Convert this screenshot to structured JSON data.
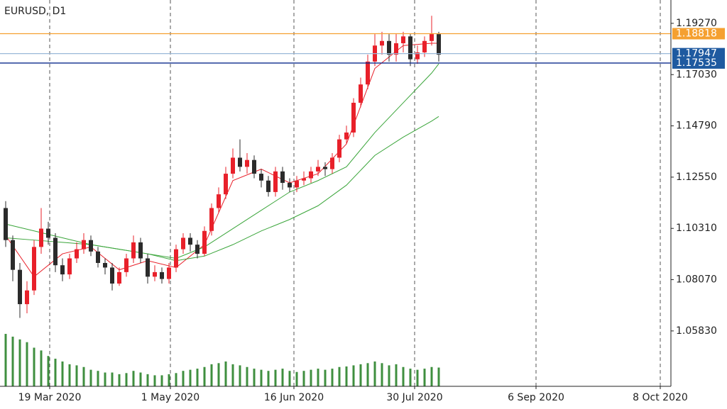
{
  "chart_data": {
    "type": "candlestick",
    "title": "EURUSD, D1",
    "open": [
      1.112,
      1.098,
      1.085,
      1.07,
      1.076,
      1.095,
      1.103,
      1.099,
      1.087,
      1.083,
      1.09,
      1.094,
      1.098,
      1.093,
      1.088,
      1.086,
      1.079,
      1.084,
      1.09,
      1.097,
      1.09,
      1.082,
      1.084,
      1.081,
      1.086,
      1.094,
      1.099,
      1.096,
      1.092,
      1.102,
      1.112,
      1.118,
      1.127,
      1.134,
      1.13,
      1.133,
      1.127,
      1.124,
      1.119,
      1.128,
      1.123,
      1.121,
      1.124,
      1.125,
      1.128,
      1.13,
      1.129,
      1.134,
      1.142,
      1.145,
      1.158,
      1.166,
      1.176,
      1.183,
      1.185,
      1.179,
      1.184,
      1.187,
      1.177,
      1.18,
      1.185,
      1.188
    ],
    "high": [
      1.115,
      1.1,
      1.088,
      1.08,
      1.098,
      1.112,
      1.106,
      1.101,
      1.09,
      1.092,
      1.097,
      1.101,
      1.1,
      1.095,
      1.09,
      1.088,
      1.086,
      1.092,
      1.1,
      1.099,
      1.092,
      1.087,
      1.086,
      1.088,
      1.096,
      1.101,
      1.101,
      1.098,
      1.104,
      1.114,
      1.121,
      1.13,
      1.138,
      1.142,
      1.136,
      1.135,
      1.129,
      1.126,
      1.13,
      1.13,
      1.125,
      1.126,
      1.128,
      1.13,
      1.133,
      1.132,
      1.136,
      1.144,
      1.148,
      1.16,
      1.169,
      1.179,
      1.188,
      1.189,
      1.188,
      1.188,
      1.189,
      1.188,
      1.183,
      1.187,
      1.196,
      1.189
    ],
    "low": [
      1.095,
      1.08,
      1.064,
      1.066,
      1.074,
      1.092,
      1.096,
      1.084,
      1.08,
      1.081,
      1.088,
      1.092,
      1.091,
      1.086,
      1.083,
      1.076,
      1.078,
      1.082,
      1.088,
      1.088,
      1.079,
      1.08,
      1.079,
      1.079,
      1.084,
      1.092,
      1.093,
      1.09,
      1.091,
      1.1,
      1.11,
      1.116,
      1.125,
      1.128,
      1.127,
      1.125,
      1.121,
      1.117,
      1.117,
      1.12,
      1.119,
      1.119,
      1.122,
      1.123,
      1.126,
      1.126,
      1.127,
      1.132,
      1.14,
      1.143,
      1.156,
      1.164,
      1.174,
      1.179,
      1.176,
      1.176,
      1.18,
      1.174,
      1.175,
      1.178,
      1.183,
      1.176
    ],
    "close": [
      1.098,
      1.085,
      1.07,
      1.076,
      1.095,
      1.103,
      1.099,
      1.087,
      1.083,
      1.09,
      1.094,
      1.098,
      1.093,
      1.088,
      1.086,
      1.079,
      1.084,
      1.09,
      1.097,
      1.09,
      1.082,
      1.084,
      1.081,
      1.086,
      1.094,
      1.099,
      1.096,
      1.092,
      1.102,
      1.112,
      1.118,
      1.127,
      1.134,
      1.13,
      1.133,
      1.127,
      1.124,
      1.119,
      1.128,
      1.123,
      1.121,
      1.124,
      1.125,
      1.128,
      1.13,
      1.129,
      1.134,
      1.142,
      1.145,
      1.158,
      1.166,
      1.176,
      1.183,
      1.185,
      1.179,
      1.184,
      1.187,
      1.177,
      1.18,
      1.185,
      1.188,
      1.179
    ],
    "up_color": "#e8202a",
    "down_color": "#2b2b2b",
    "volume": [
      95,
      90,
      85,
      80,
      70,
      65,
      55,
      50,
      45,
      40,
      38,
      35,
      30,
      28,
      25,
      25,
      22,
      24,
      28,
      25,
      22,
      20,
      20,
      22,
      24,
      28,
      30,
      32,
      35,
      40,
      42,
      45,
      40,
      38,
      35,
      32,
      30,
      28,
      30,
      32,
      28,
      26,
      28,
      30,
      32,
      30,
      32,
      35,
      36,
      38,
      40,
      42,
      45,
      42,
      38,
      40,
      35,
      32,
      30,
      32,
      35,
      34
    ],
    "volume_color": "#3f8f3f",
    "volume_lim": [
      0,
      700
    ],
    "series": [
      {
        "color": "#e8202a",
        "x": [
          0,
          4,
          8,
          12,
          16,
          20,
          24,
          28,
          32,
          36,
          40,
          44,
          48,
          52,
          56,
          60,
          61
        ],
        "values": [
          1.1,
          1.082,
          1.092,
          1.095,
          1.085,
          1.089,
          1.086,
          1.096,
          1.124,
          1.129,
          1.123,
          1.127,
          1.14,
          1.173,
          1.183,
          1.184,
          1.184
        ]
      },
      {
        "color": "#3aa53a",
        "x": [
          0,
          4,
          8,
          12,
          16,
          20,
          24,
          28,
          32,
          36,
          40,
          44,
          48,
          52,
          56,
          60,
          61
        ],
        "values": [
          1.105,
          1.102,
          1.099,
          1.096,
          1.094,
          1.092,
          1.09,
          1.095,
          1.103,
          1.111,
          1.119,
          1.124,
          1.13,
          1.145,
          1.158,
          1.171,
          1.175
        ]
      },
      {
        "color": "#3aa53a",
        "x": [
          0,
          4,
          8,
          12,
          16,
          20,
          24,
          28,
          32,
          36,
          40,
          44,
          48,
          52,
          56,
          60,
          61
        ],
        "values": [
          1.099,
          1.098,
          1.097,
          1.096,
          1.094,
          1.092,
          1.089,
          1.091,
          1.096,
          1.102,
          1.107,
          1.113,
          1.122,
          1.135,
          1.143,
          1.15,
          1.152
        ]
      }
    ],
    "levels": [
      {
        "value": 1.18818,
        "color": "#f5a030",
        "label_color": "#f5a030"
      },
      {
        "value": 1.17947,
        "color": "#9ab8d8",
        "label_color": "#1f5aa0"
      },
      {
        "value": 1.17535,
        "color": "#0a2a8c",
        "label_color": "#1f5aa0"
      }
    ],
    "xlim": [
      -0.8,
      93.7
    ],
    "ylim": [
      1.0341,
      1.2029
    ],
    "xticks": [
      {
        "value": 6.2,
        "label": "19 Mar 2020"
      },
      {
        "value": 23.2,
        "label": "1 May 2020"
      },
      {
        "value": 40.6,
        "label": "16 Jun 2020"
      },
      {
        "value": 57.6,
        "label": "30 Jul 2020"
      },
      {
        "value": 74.7,
        "label": "6 Sep 2020"
      },
      {
        "value": 92.2,
        "label": "8 Oct 2020"
      }
    ],
    "yticks": [
      {
        "value": 1.1927,
        "label": "1.19270"
      },
      {
        "value": 1.1703,
        "label": "1.17030"
      },
      {
        "value": 1.1479,
        "label": "1.14790"
      },
      {
        "value": 1.1255,
        "label": "1.12550"
      },
      {
        "value": 1.1031,
        "label": "1.10310"
      },
      {
        "value": 1.0807,
        "label": "1.08070"
      },
      {
        "value": 1.0583,
        "label": "1.05830"
      }
    ],
    "grid": true
  }
}
